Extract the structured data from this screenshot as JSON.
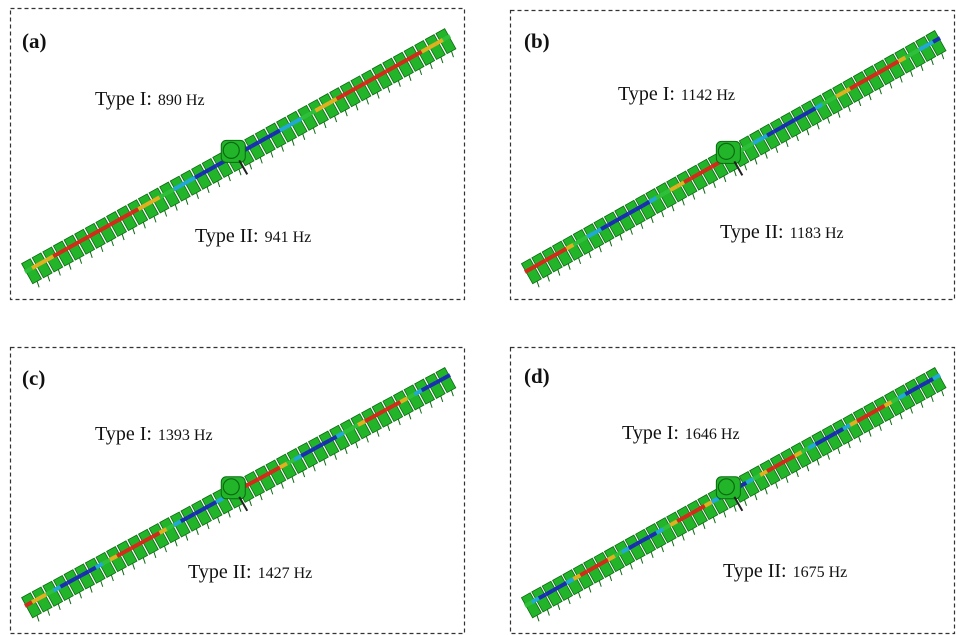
{
  "panels": [
    {
      "label": "(a)",
      "mode_1": {
        "name": "Type I:",
        "freq": "890 Hz"
      },
      "mode_2": {
        "name": "Type II:",
        "freq": "941 Hz"
      }
    },
    {
      "label": "(b)",
      "mode_1": {
        "name": "Type I:",
        "freq": "1142 Hz"
      },
      "mode_2": {
        "name": "Type II:",
        "freq": "1183 Hz"
      }
    },
    {
      "label": "(c)",
      "mode_1": {
        "name": "Type I:",
        "freq": "1393 Hz"
      },
      "mode_2": {
        "name": "Type II:",
        "freq": "1427 Hz"
      }
    },
    {
      "label": "(d)",
      "mode_1": {
        "name": "Type I:",
        "freq": "1646 Hz"
      },
      "mode_2": {
        "name": "Type II:",
        "freq": "1675 Hz"
      }
    }
  ]
}
